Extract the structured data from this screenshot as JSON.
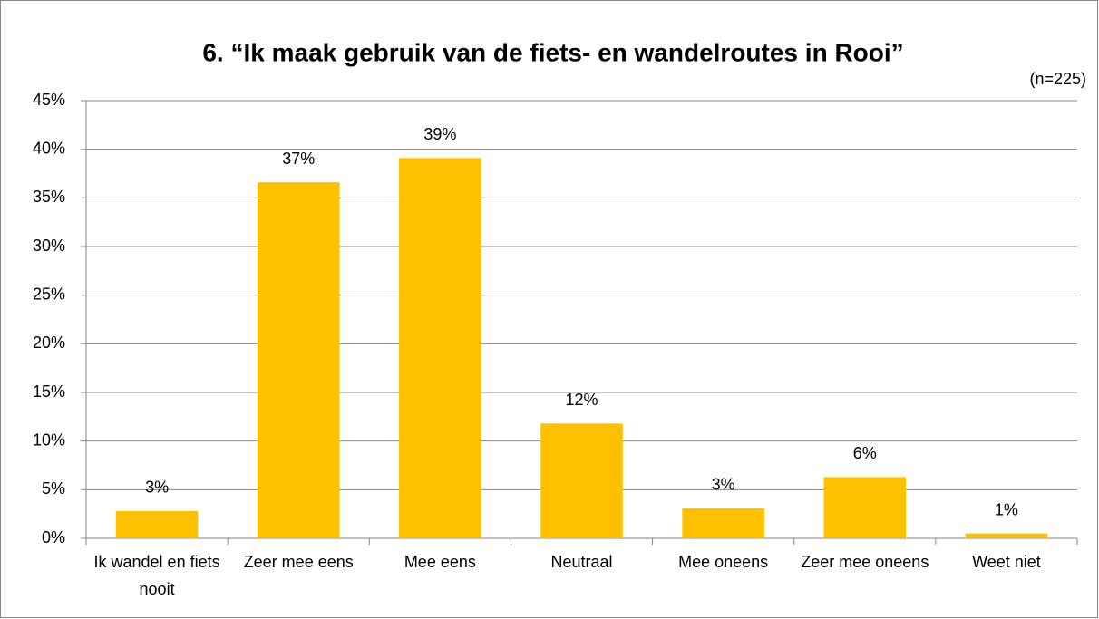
{
  "chart_data": {
    "type": "bar",
    "title": "6. “Ik maak gebruik van de fiets- en wandelroutes in Rooi”",
    "subtitle": "(n=225)",
    "categories": [
      "Ik wandel en fiets nooit",
      "Zeer mee eens",
      "Mee eens",
      "Neutraal",
      "Mee oneens",
      "Zeer mee oneens",
      "Weet niet"
    ],
    "values": [
      2.8,
      36.6,
      39.1,
      11.8,
      3.1,
      6.3,
      0.5
    ],
    "value_labels": [
      "3%",
      "37%",
      "39%",
      "12%",
      "3%",
      "6%",
      "1%"
    ],
    "color": "#ffc000",
    "ylim": [
      0,
      45
    ],
    "yticks": [
      {
        "value": 0,
        "label": "0%"
      },
      {
        "value": 5,
        "label": "5%"
      },
      {
        "value": 10,
        "label": "10%"
      },
      {
        "value": 15,
        "label": "15%"
      },
      {
        "value": 20,
        "label": "20%"
      },
      {
        "value": 25,
        "label": "25%"
      },
      {
        "value": 30,
        "label": "30%"
      },
      {
        "value": 35,
        "label": "35%"
      },
      {
        "value": 40,
        "label": "40%"
      },
      {
        "value": 45,
        "label": "45%"
      }
    ],
    "grid": true
  }
}
